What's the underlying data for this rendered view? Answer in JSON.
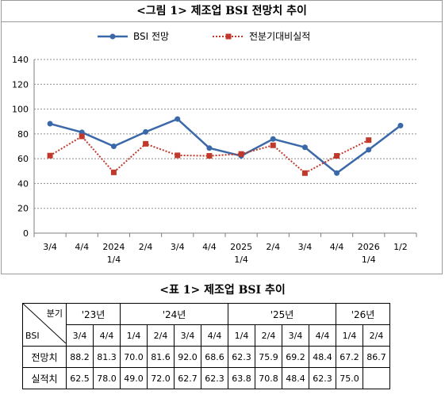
{
  "figure": {
    "title": "<그림 1> 제조업 BSI 전망치 추이"
  },
  "chart_data": {
    "type": "line",
    "categories": [
      [
        "3/4",
        ""
      ],
      [
        "4/4",
        ""
      ],
      [
        "2024",
        "1/4"
      ],
      [
        "2/4",
        ""
      ],
      [
        "3/4",
        ""
      ],
      [
        "4/4",
        ""
      ],
      [
        "2025",
        "1/4"
      ],
      [
        "2/4",
        ""
      ],
      [
        "3/4",
        ""
      ],
      [
        "4/4",
        ""
      ],
      [
        "2026",
        "1/4"
      ],
      [
        "1/2",
        ""
      ]
    ],
    "series": [
      {
        "name": "BSI 전망",
        "color": "#3a68a8",
        "marker": "circle",
        "style": "solid",
        "values": [
          88.2,
          81.3,
          70.0,
          81.6,
          92.0,
          68.6,
          62.3,
          75.9,
          69.2,
          48.4,
          67.2,
          86.7
        ]
      },
      {
        "name": "전분기대비실적",
        "color": "#c0392b",
        "marker": "square",
        "style": "dotted",
        "values": [
          62.5,
          78.0,
          49.0,
          72.0,
          62.7,
          62.3,
          63.8,
          70.8,
          48.4,
          62.3,
          75.0,
          null
        ]
      }
    ],
    "ylim": [
      0,
      140
    ],
    "yticks": [
      0,
      20,
      40,
      60,
      80,
      100,
      120,
      140
    ],
    "grid": true,
    "legend_position": "top"
  },
  "table": {
    "title": "<표 1> 제조업 BSI 추이",
    "corner_top": "분기",
    "corner_bottom": "BSI",
    "years": [
      {
        "label": "'23년",
        "span": 2
      },
      {
        "label": "'24년",
        "span": 4
      },
      {
        "label": "'25년",
        "span": 4
      },
      {
        "label": "'26년",
        "span": 2
      }
    ],
    "quarters": [
      "3/4",
      "4/4",
      "1/4",
      "2/4",
      "3/4",
      "4/4",
      "1/4",
      "2/4",
      "3/4",
      "4/4",
      "1/4",
      "2/4"
    ],
    "rows": [
      {
        "label": "전망치",
        "values": [
          "88.2",
          "81.3",
          "70.0",
          "81.6",
          "92.0",
          "68.6",
          "62.3",
          "75.9",
          "69.2",
          "48.4",
          "67.2",
          "86.7"
        ]
      },
      {
        "label": "실적치",
        "values": [
          "62.5",
          "78.0",
          "49.0",
          "72.0",
          "62.7",
          "62.3",
          "63.8",
          "70.8",
          "48.4",
          "62.3",
          "75.0",
          ""
        ]
      }
    ]
  }
}
